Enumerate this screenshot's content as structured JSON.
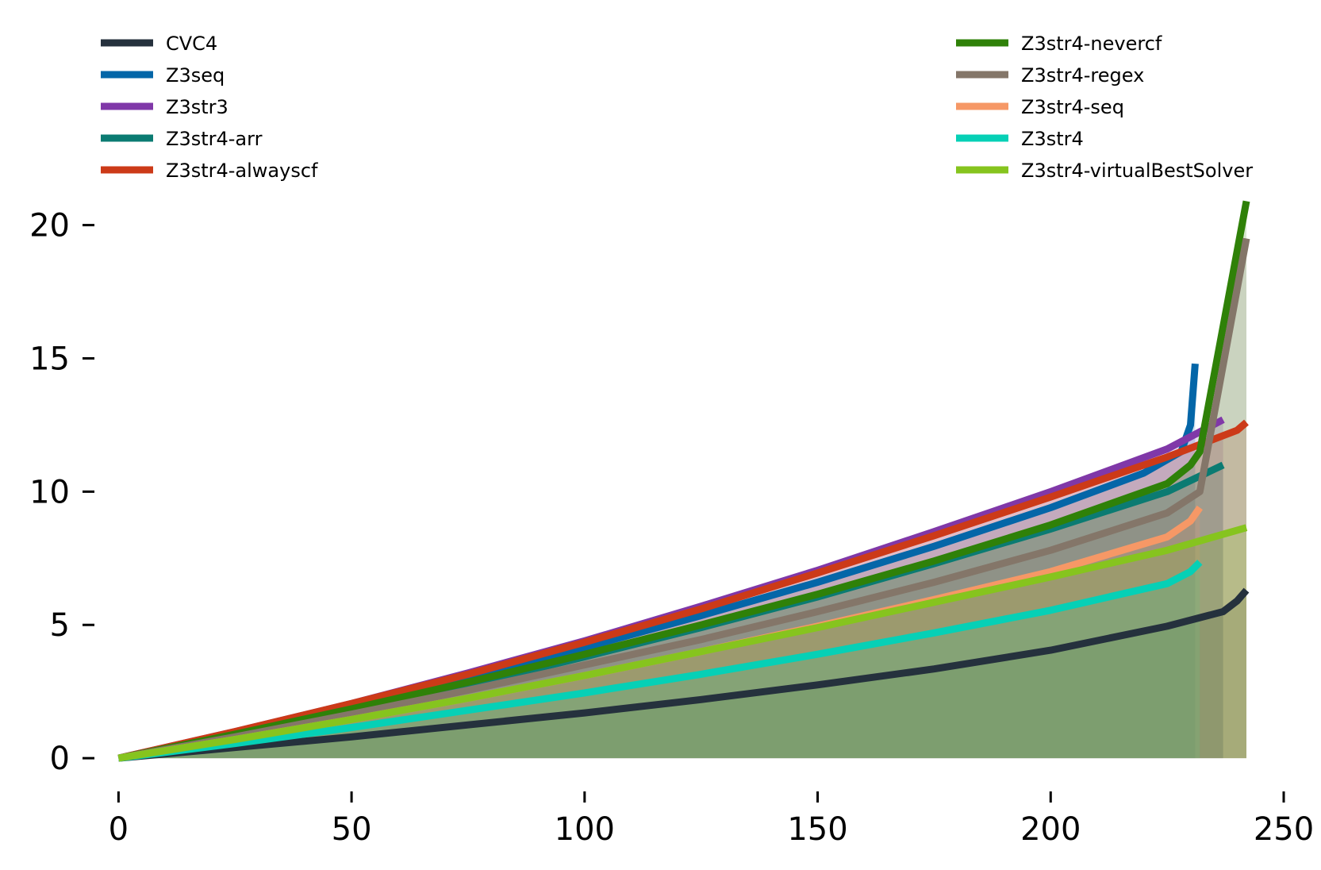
{
  "chart_data": {
    "type": "area",
    "title": "",
    "xlabel": "",
    "ylabel": "",
    "xlim": [
      -5,
      250
    ],
    "ylim": [
      -0.8,
      21
    ],
    "x_ticks": [
      0,
      50,
      100,
      150,
      200,
      250
    ],
    "y_ticks": [
      0,
      5,
      10,
      15,
      20
    ],
    "grid": false,
    "legend_placement": "top, two columns",
    "series": [
      {
        "name": "CVC4",
        "color": "#25313d",
        "points": [
          [
            0,
            0
          ],
          [
            25,
            0.4
          ],
          [
            50,
            0.8
          ],
          [
            75,
            1.25
          ],
          [
            100,
            1.7
          ],
          [
            125,
            2.2
          ],
          [
            150,
            2.75
          ],
          [
            175,
            3.35
          ],
          [
            200,
            4.05
          ],
          [
            225,
            4.95
          ],
          [
            237,
            5.5
          ],
          [
            240,
            5.9
          ],
          [
            242,
            6.3
          ]
        ]
      },
      {
        "name": "Z3seq",
        "color": "#0466a8",
        "points": [
          [
            0,
            0
          ],
          [
            25,
            0.95
          ],
          [
            50,
            1.95
          ],
          [
            75,
            3.05
          ],
          [
            100,
            4.15
          ],
          [
            125,
            5.35
          ],
          [
            150,
            6.6
          ],
          [
            175,
            7.95
          ],
          [
            200,
            9.4
          ],
          [
            220,
            10.7
          ],
          [
            228,
            11.5
          ],
          [
            230,
            12.5
          ],
          [
            231,
            14.8
          ]
        ]
      },
      {
        "name": "Z3str3",
        "color": "#8038a8",
        "points": [
          [
            0,
            0
          ],
          [
            25,
            1.0
          ],
          [
            50,
            2.05
          ],
          [
            75,
            3.2
          ],
          [
            100,
            4.4
          ],
          [
            125,
            5.7
          ],
          [
            150,
            7.05
          ],
          [
            175,
            8.5
          ],
          [
            200,
            10.0
          ],
          [
            225,
            11.6
          ],
          [
            237,
            12.7
          ]
        ]
      },
      {
        "name": "Z3str4-arr",
        "color": "#0b7b72",
        "points": [
          [
            0,
            0
          ],
          [
            25,
            0.85
          ],
          [
            50,
            1.75
          ],
          [
            75,
            2.75
          ],
          [
            100,
            3.8
          ],
          [
            125,
            4.9
          ],
          [
            150,
            6.05
          ],
          [
            175,
            7.3
          ],
          [
            200,
            8.6
          ],
          [
            225,
            10.0
          ],
          [
            237,
            11.0
          ]
        ]
      },
      {
        "name": "Z3str4-alwayscf",
        "color": "#cc3a18",
        "points": [
          [
            0,
            0
          ],
          [
            25,
            1.0
          ],
          [
            50,
            2.05
          ],
          [
            75,
            3.15
          ],
          [
            100,
            4.35
          ],
          [
            125,
            5.6
          ],
          [
            150,
            6.95
          ],
          [
            175,
            8.35
          ],
          [
            200,
            9.8
          ],
          [
            225,
            11.3
          ],
          [
            240,
            12.3
          ],
          [
            242,
            12.6
          ]
        ]
      },
      {
        "name": "Z3str4-nevercf",
        "color": "#2f8108",
        "points": [
          [
            0,
            0
          ],
          [
            25,
            0.9
          ],
          [
            50,
            1.85
          ],
          [
            75,
            2.85
          ],
          [
            100,
            3.9
          ],
          [
            125,
            5.0
          ],
          [
            150,
            6.15
          ],
          [
            175,
            7.4
          ],
          [
            200,
            8.75
          ],
          [
            225,
            10.3
          ],
          [
            230,
            11.0
          ],
          [
            232,
            11.5
          ],
          [
            242,
            20.9
          ]
        ]
      },
      {
        "name": "Z3str4-regex",
        "color": "#847669",
        "points": [
          [
            0,
            0
          ],
          [
            25,
            0.8
          ],
          [
            50,
            1.65
          ],
          [
            75,
            2.55
          ],
          [
            100,
            3.5
          ],
          [
            125,
            4.45
          ],
          [
            150,
            5.5
          ],
          [
            175,
            6.6
          ],
          [
            200,
            7.8
          ],
          [
            225,
            9.2
          ],
          [
            232,
            10.0
          ],
          [
            242,
            19.5
          ]
        ]
      },
      {
        "name": "Z3str4-seq",
        "color": "#f69866",
        "points": [
          [
            0,
            0
          ],
          [
            25,
            0.7
          ],
          [
            50,
            1.45
          ],
          [
            75,
            2.25
          ],
          [
            100,
            3.1
          ],
          [
            125,
            4.0
          ],
          [
            150,
            4.95
          ],
          [
            175,
            5.95
          ],
          [
            200,
            7.0
          ],
          [
            225,
            8.3
          ],
          [
            230,
            8.9
          ],
          [
            232,
            9.4
          ]
        ]
      },
      {
        "name": "Z3str4",
        "color": "#06d0b6",
        "points": [
          [
            0,
            0
          ],
          [
            25,
            0.55
          ],
          [
            50,
            1.15
          ],
          [
            75,
            1.8
          ],
          [
            100,
            2.45
          ],
          [
            125,
            3.15
          ],
          [
            150,
            3.9
          ],
          [
            175,
            4.7
          ],
          [
            200,
            5.55
          ],
          [
            225,
            6.55
          ],
          [
            230,
            7.0
          ],
          [
            232,
            7.35
          ]
        ]
      },
      {
        "name": "Z3str4-virtualBestSolver",
        "color": "#86c41e",
        "points": [
          [
            0,
            0
          ],
          [
            25,
            0.7
          ],
          [
            50,
            1.45
          ],
          [
            75,
            2.25
          ],
          [
            100,
            3.1
          ],
          [
            125,
            4.0
          ],
          [
            150,
            4.9
          ],
          [
            175,
            5.85
          ],
          [
            200,
            6.8
          ],
          [
            225,
            7.8
          ],
          [
            242,
            8.65
          ]
        ]
      }
    ]
  }
}
